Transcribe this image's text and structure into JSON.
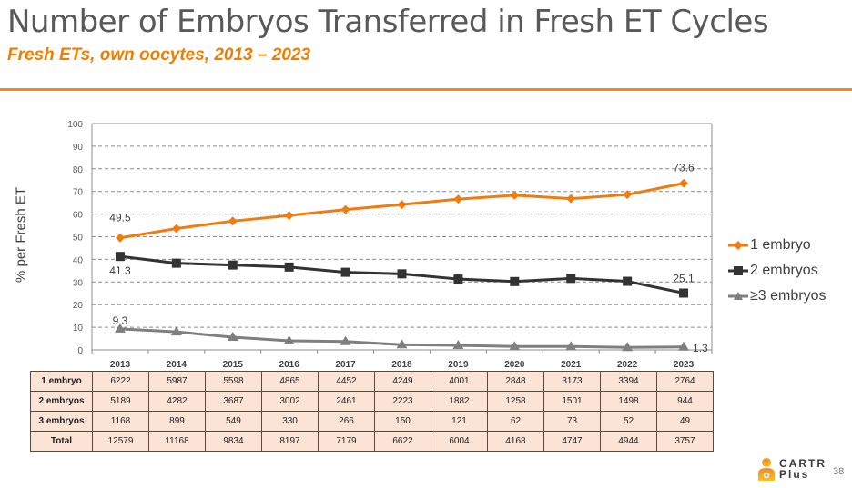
{
  "slide": {
    "title": "Number of Embryos Transferred in Fresh ET Cycles",
    "subtitle": "Fresh ETs, own oocytes, 2013 – 2023",
    "page_number": "38",
    "logo": {
      "line1": "CARTR",
      "line2": "Plus",
      "icon": "person-plus-icon"
    },
    "accent_color": "#ef7d00"
  },
  "chart_data": {
    "type": "line",
    "title": "",
    "xlabel": "",
    "ylabel": "% per Fresh ET",
    "ylim": [
      0,
      100
    ],
    "yticks": [
      0,
      10,
      20,
      30,
      40,
      50,
      60,
      70,
      80,
      90,
      100
    ],
    "grid": true,
    "legend_position": "right",
    "categories": [
      "2013",
      "2014",
      "2015",
      "2016",
      "2017",
      "2018",
      "2019",
      "2020",
      "2021",
      "2022",
      "2023"
    ],
    "series": [
      {
        "name": "1 embryo",
        "color": "#f07c10",
        "marker": "diamond",
        "values": [
          49.5,
          53.6,
          56.9,
          59.4,
          62.0,
          64.2,
          66.6,
          68.3,
          66.8,
          68.6,
          73.6
        ],
        "labels": {
          "0": "49.5",
          "10": "73.6"
        }
      },
      {
        "name": "2 embryos",
        "color": "#333333",
        "marker": "square",
        "values": [
          41.3,
          38.3,
          37.5,
          36.6,
          34.3,
          33.6,
          31.3,
          30.2,
          31.6,
          30.3,
          25.1
        ],
        "labels": {
          "0": "41.3",
          "10": "25.1"
        }
      },
      {
        "name": "≥3 embryos",
        "color": "#7f7f7f",
        "marker": "triangle",
        "values": [
          9.3,
          8.0,
          5.6,
          4.0,
          3.7,
          2.3,
          2.0,
          1.5,
          1.5,
          1.1,
          1.3
        ],
        "labels": {
          "0": "9.3",
          "10": "1.3"
        }
      }
    ]
  },
  "table": {
    "rows": [
      {
        "label": "1 embryo",
        "values": [
          "6222",
          "5987",
          "5598",
          "4865",
          "4452",
          "4249",
          "4001",
          "2848",
          "3173",
          "3394",
          "2764"
        ]
      },
      {
        "label": "2 embryos",
        "values": [
          "5189",
          "4282",
          "3687",
          "3002",
          "2461",
          "2223",
          "1882",
          "1258",
          "1501",
          "1498",
          "944"
        ]
      },
      {
        "label": "3 embryos",
        "values": [
          "1168",
          "899",
          "549",
          "330",
          "266",
          "150",
          "121",
          "62",
          "73",
          "52",
          "49"
        ]
      },
      {
        "label": "Total",
        "values": [
          "12579",
          "11168",
          "9834",
          "8197",
          "7179",
          "6622",
          "6004",
          "4168",
          "4747",
          "4944",
          "3757"
        ]
      }
    ]
  }
}
